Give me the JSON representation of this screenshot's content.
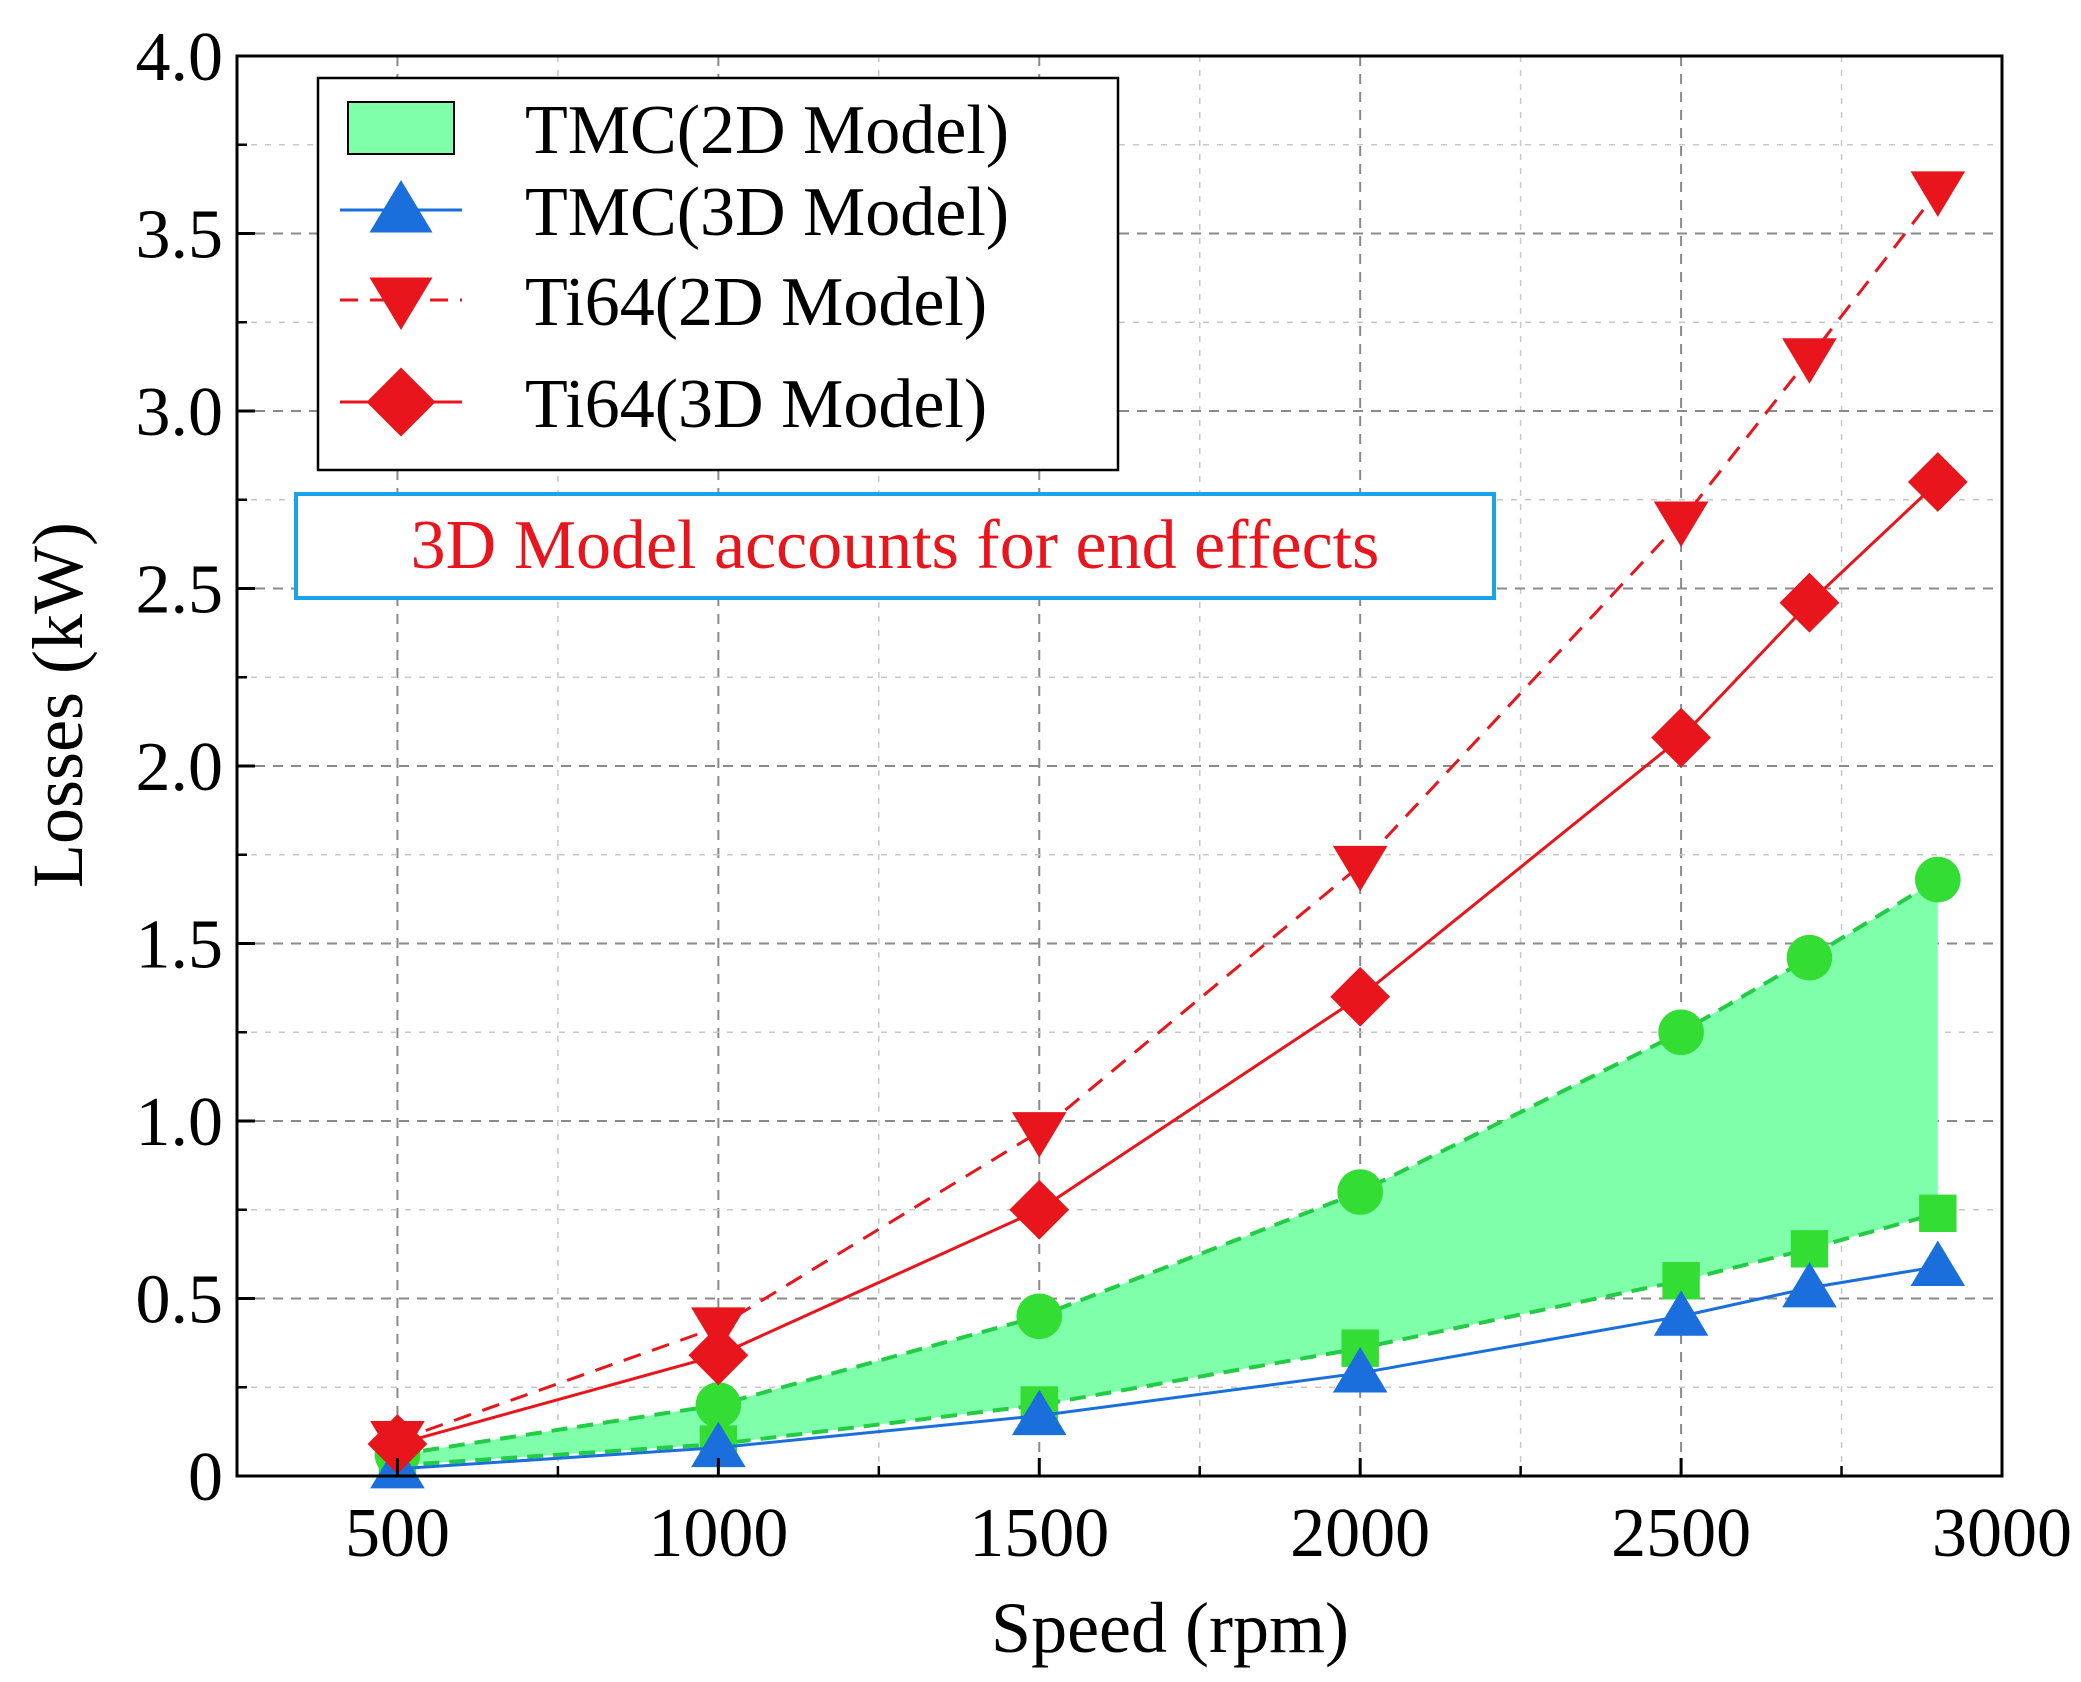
{
  "chart_data": {
    "type": "line",
    "title": "",
    "xlabel": "Speed (rpm)",
    "ylabel": "Losses (kW)",
    "xlim": [
      250,
      3000
    ],
    "ylim": [
      0,
      4.0
    ],
    "xticks": [
      500,
      1000,
      1500,
      2000,
      2500,
      3000
    ],
    "xtick_labels": [
      "500",
      "1000",
      "1500",
      "2000",
      "2500",
      "3000"
    ],
    "yticks": [
      0,
      0.5,
      1.0,
      1.5,
      2.0,
      2.5,
      3.0,
      3.5,
      4.0
    ],
    "ytick_labels": [
      "0",
      "0.5",
      "1.0",
      "1.5",
      "2.0",
      "2.5",
      "3.0",
      "3.5",
      "4.0"
    ],
    "grid": true,
    "legend_position": "top-left",
    "x": [
      500,
      1000,
      1500,
      2000,
      2500,
      2700,
      2900
    ],
    "band": {
      "name": "TMC(2D Model)",
      "color": "#80ffaa",
      "edge_color": "#22cc44",
      "upper": [
        0.06,
        0.2,
        0.45,
        0.8,
        1.25,
        1.46,
        1.68
      ],
      "lower": [
        0.03,
        0.09,
        0.2,
        0.36,
        0.55,
        0.64,
        0.74
      ]
    },
    "series": [
      {
        "name": "TMC(3D Model)",
        "color": "#1a6fdc",
        "marker": "triangle-up",
        "dash": false,
        "values": [
          0.02,
          0.08,
          0.17,
          0.29,
          0.45,
          0.53,
          0.59
        ]
      },
      {
        "name": "Ti64(2D Model)",
        "color": "#e8161c",
        "marker": "triangle-down",
        "dash": true,
        "values": [
          0.1,
          0.42,
          0.97,
          1.72,
          2.69,
          3.15,
          3.62
        ]
      },
      {
        "name": "Ti64(3D Model)",
        "color": "#e8161c",
        "marker": "diamond",
        "dash": false,
        "values": [
          0.09,
          0.34,
          0.75,
          1.35,
          2.08,
          2.46,
          2.8
        ]
      }
    ],
    "annotation": {
      "text": "3D Model accounts for end effects",
      "text_color": "#e8161c",
      "border_color": "#1aa3e8"
    }
  }
}
